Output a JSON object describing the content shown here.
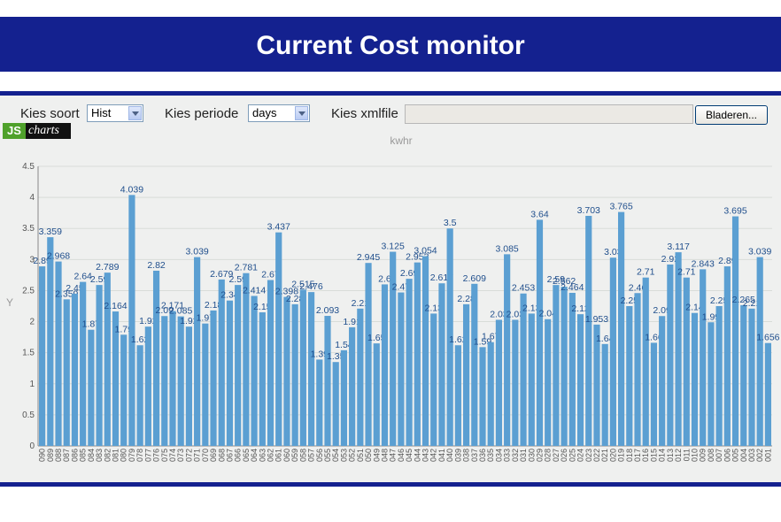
{
  "header": {
    "title": "Current Cost monitor"
  },
  "controls": {
    "type_label": "Kies soort",
    "type_value": "Hist",
    "period_label": "Kies periode",
    "period_value": "days",
    "file_label": "Kies xmlfile",
    "browse_label": "Bladeren..."
  },
  "logo": {
    "part1": "JS",
    "part2": "charts"
  },
  "colors": {
    "header": "#14218f",
    "bar": "#5b9fd2",
    "value_label": "#1f4e8c",
    "panel": "#eff0ef"
  },
  "chart_data": {
    "type": "bar",
    "title": "kwhr",
    "xlabel": "",
    "ylabel": "Y",
    "ylim": [
      0,
      4.5
    ],
    "yticks": [
      0,
      0.5,
      1,
      1.5,
      2,
      2.5,
      3,
      3.5,
      4,
      4.5
    ],
    "grid": true,
    "categories": [
      "090",
      "089",
      "088",
      "087",
      "086",
      "085",
      "084",
      "083",
      "082",
      "081",
      "080",
      "079",
      "078",
      "077",
      "076",
      "075",
      "074",
      "073",
      "072",
      "071",
      "070",
      "069",
      "068",
      "067",
      "066",
      "065",
      "064",
      "063",
      "062",
      "061",
      "060",
      "059",
      "058",
      "057",
      "056",
      "055",
      "054",
      "053",
      "052",
      "051",
      "050",
      "049",
      "048",
      "047",
      "046",
      "045",
      "044",
      "043",
      "042",
      "041",
      "040",
      "039",
      "038",
      "037",
      "036",
      "035",
      "034",
      "033",
      "032",
      "031",
      "030",
      "029",
      "028",
      "027",
      "026",
      "025",
      "024",
      "023",
      "022",
      "021",
      "020",
      "019",
      "018",
      "017",
      "016",
      "015",
      "014",
      "013",
      "012",
      "011",
      "010",
      "009",
      "008",
      "007",
      "006",
      "005",
      "004",
      "003",
      "002",
      "001"
    ],
    "values": [
      2.89,
      3.359,
      2.968,
      2.359,
      2.45,
      2.64,
      1.87,
      2.59,
      2.789,
      2.164,
      1.79,
      4.039,
      1.62,
      1.92,
      2.82,
      2.09,
      2.171,
      2.085,
      1.92,
      3.039,
      1.97,
      2.18,
      2.679,
      2.34,
      2.59,
      2.781,
      2.414,
      2.15,
      2.67,
      3.437,
      2.398,
      2.28,
      2.515,
      2.476,
      1.39,
      2.093,
      1.35,
      1.54,
      1.91,
      2.21,
      2.945,
      1.65,
      2.6,
      3.125,
      2.47,
      2.69,
      2.953,
      3.054,
      2.13,
      2.617,
      3.5,
      1.62,
      2.28,
      2.609,
      1.59,
      1.67,
      2.03,
      3.085,
      2.03,
      2.453,
      2.13,
      3.64,
      2.04,
      2.59,
      2.562,
      2.464,
      2.12,
      3.703,
      1.953,
      1.64,
      3.03,
      3.765,
      2.25,
      2.46,
      2.71,
      1.66,
      2.09,
      2.92,
      3.117,
      2.71,
      2.14,
      2.843,
      1.99,
      2.25,
      2.89,
      3.695,
      2.265,
      2.21,
      3.039,
      1.656
    ]
  }
}
